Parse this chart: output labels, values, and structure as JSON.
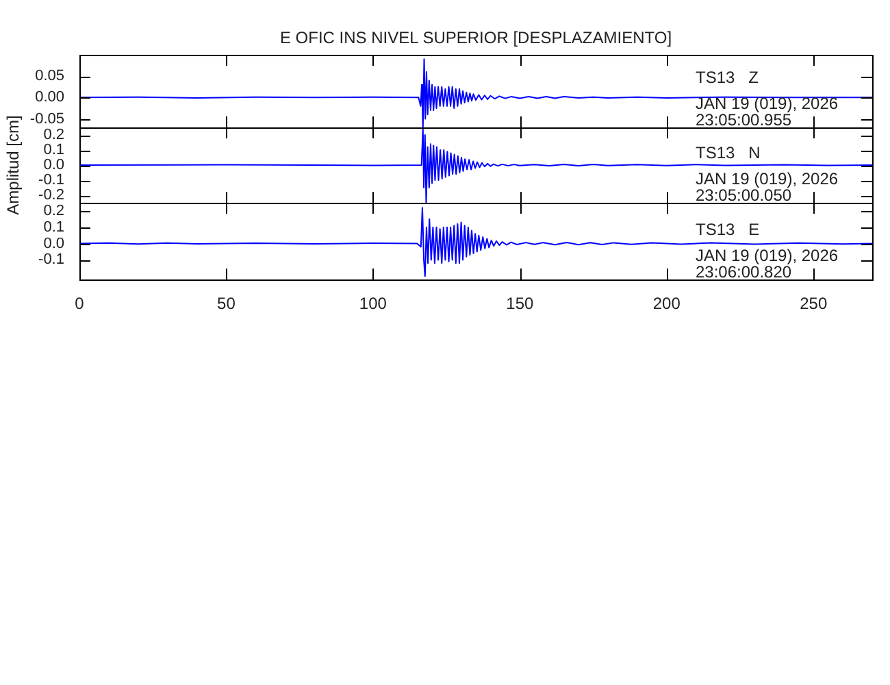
{
  "chart_data": [
    {
      "type": "line",
      "title": "E OFIC INS NIVEL SUPERIOR [DESPLAZAMIENTO]",
      "color": "#0000ff",
      "marker": "none",
      "tick_labels": "y",
      "xlim": [
        0,
        270
      ],
      "xticks": [
        0,
        50,
        100,
        150,
        200,
        250
      ],
      "ylim": [
        -0.07,
        0.1
      ],
      "yticks": [
        {
          "value": -0.05,
          "label": "-0.05"
        },
        {
          "value": 0,
          "label": "0.00"
        },
        {
          "value": 0.05,
          "label": "0.05"
        }
      ],
      "annotations": [
        "TS13   Z",
        "JAN 19 (019), 2026",
        "23:05:00.955"
      ],
      "x": [
        0,
        20,
        40,
        60,
        80,
        100,
        115.5,
        116.2,
        116.6,
        117.0,
        117.4,
        117.8,
        118.2,
        118.6,
        119.1,
        119.6,
        120.1,
        120.6,
        121.1,
        121.6,
        122.2,
        122.8,
        123.4,
        124.0,
        124.6,
        125.2,
        125.8,
        126.4,
        127.0,
        127.6,
        128.2,
        128.8,
        129.4,
        130.0,
        130.6,
        131.2,
        131.8,
        132.4,
        133.0,
        133.6,
        134.2,
        135,
        136,
        137,
        138,
        139,
        140,
        141.5,
        143,
        145,
        147,
        150,
        153,
        156,
        159,
        162,
        165,
        170,
        175,
        180,
        190,
        200,
        220,
        240,
        270
      ],
      "values": [
        0,
        0.001,
        -0.001,
        0.001,
        0,
        0.001,
        0,
        -0.02,
        0.03,
        -0.07,
        0.09,
        -0.05,
        0.06,
        -0.04,
        0.04,
        -0.03,
        0.03,
        -0.03,
        0.025,
        -0.025,
        0.025,
        -0.02,
        0.025,
        -0.02,
        0.02,
        -0.02,
        0.025,
        -0.02,
        0.025,
        -0.025,
        0.02,
        -0.02,
        0.02,
        -0.015,
        0.015,
        -0.012,
        0.012,
        -0.01,
        0.01,
        -0.008,
        0.008,
        -0.006,
        0.006,
        -0.005,
        0.005,
        -0.004,
        0.004,
        -0.003,
        0.003,
        -0.002,
        0.002,
        -0.002,
        0.002,
        -0.002,
        0.002,
        -0.002,
        0.002,
        -0.001,
        0.001,
        -0.001,
        0.001,
        -0.001,
        0.001,
        0,
        0
      ]
    },
    {
      "type": "line",
      "ylabel": "Amplitud [cm]",
      "color": "#0000ff",
      "marker": "none",
      "tick_labels": "y",
      "xlim": [
        0,
        270
      ],
      "xticks": [
        0,
        50,
        100,
        150,
        200,
        250
      ],
      "ylim": [
        -0.25,
        0.25
      ],
      "yticks": [
        {
          "value": -0.2,
          "label": "-0.2"
        },
        {
          "value": -0.1,
          "label": "-0.1"
        },
        {
          "value": 0,
          "label": "0.0"
        },
        {
          "value": 0.1,
          "label": "0.1"
        },
        {
          "value": 0.2,
          "label": "0.2"
        }
      ],
      "annotations": [
        "TS13   N",
        "JAN 19 (019), 2026",
        "23:05:00.050"
      ],
      "x": [
        0,
        50,
        100,
        116.5,
        117.0,
        117.3,
        117.7,
        118.1,
        118.6,
        119.1,
        119.6,
        120.1,
        120.6,
        121.1,
        121.7,
        122.3,
        122.9,
        123.5,
        124.1,
        124.7,
        125.3,
        125.9,
        126.5,
        127.1,
        127.7,
        128.3,
        128.9,
        129.5,
        130.1,
        130.7,
        131.3,
        132,
        132.7,
        133.4,
        134.1,
        134.8,
        135.5,
        136.3,
        137.1,
        138,
        139,
        140,
        141,
        142.5,
        144,
        146,
        148,
        150,
        155,
        160,
        165,
        170,
        175,
        180,
        190,
        200,
        210,
        220,
        240,
        255,
        270
      ],
      "values": [
        0,
        0.002,
        -0.002,
        0,
        0.24,
        -0.15,
        0.2,
        -0.25,
        0.12,
        -0.15,
        0.14,
        -0.12,
        0.13,
        -0.1,
        0.12,
        -0.1,
        0.1,
        -0.09,
        0.1,
        -0.08,
        0.09,
        -0.07,
        0.08,
        -0.06,
        0.07,
        -0.06,
        0.06,
        -0.05,
        0.05,
        -0.04,
        0.04,
        -0.03,
        0.035,
        -0.03,
        0.025,
        -0.02,
        0.02,
        -0.015,
        0.015,
        -0.01,
        0.01,
        -0.008,
        0.006,
        -0.005,
        0.005,
        -0.004,
        0.004,
        -0.003,
        0.003,
        -0.004,
        0.004,
        -0.004,
        0.004,
        -0.003,
        0.003,
        -0.003,
        0.003,
        -0.002,
        0.002,
        -0.002,
        0
      ]
    },
    {
      "type": "line",
      "color": "#0000ff",
      "marker": "none",
      "xlim": [
        0,
        270
      ],
      "xticks": [
        0,
        50,
        100,
        150,
        200,
        250
      ],
      "ylim": [
        -0.22,
        0.25
      ],
      "yticks": [
        {
          "value": -0.1,
          "label": "-0.1"
        },
        {
          "value": 0,
          "label": "0.0"
        },
        {
          "value": 0.1,
          "label": "0.1"
        },
        {
          "value": 0.2,
          "label": "0.2"
        }
      ],
      "annotations": [
        "TS13   E",
        "JAN 19 (019), 2026",
        "23:06:00.820"
      ],
      "x": [
        0,
        10,
        20,
        30,
        40,
        60,
        80,
        100,
        115,
        116.3,
        116.8,
        117.3,
        117.7,
        118.2,
        118.7,
        119.2,
        119.8,
        120.4,
        121,
        121.6,
        122.2,
        122.8,
        123.4,
        124,
        124.6,
        125.2,
        125.8,
        126.4,
        127,
        127.6,
        128.2,
        128.8,
        129.4,
        130,
        130.6,
        131.2,
        131.8,
        132.4,
        133,
        133.6,
        134.2,
        134.8,
        135.4,
        136,
        136.7,
        137.4,
        138.1,
        138.8,
        139.5,
        140.3,
        141.1,
        142,
        143,
        144,
        145.5,
        147,
        149,
        152,
        155,
        158,
        162,
        166,
        170,
        174,
        178,
        182,
        188,
        195,
        205,
        215,
        230,
        245,
        260,
        270
      ],
      "values": [
        0,
        0.003,
        -0.003,
        0.003,
        -0.002,
        0.002,
        -0.002,
        0.002,
        0,
        -0.02,
        0.22,
        -0.1,
        -0.2,
        0.1,
        -0.12,
        0.15,
        -0.1,
        0.1,
        -0.12,
        0.1,
        -0.1,
        0.09,
        -0.12,
        0.1,
        -0.1,
        0.1,
        -0.11,
        0.1,
        -0.1,
        0.11,
        -0.12,
        0.12,
        -0.12,
        0.13,
        -0.1,
        0.11,
        -0.08,
        0.1,
        -0.07,
        0.08,
        -0.06,
        0.06,
        -0.05,
        0.05,
        -0.04,
        0.04,
        -0.03,
        0.03,
        -0.025,
        0.02,
        -0.015,
        0.015,
        -0.01,
        0.01,
        -0.008,
        0.008,
        -0.006,
        0.006,
        -0.005,
        0.006,
        -0.007,
        0.007,
        -0.007,
        0.006,
        -0.006,
        0.005,
        -0.005,
        0.004,
        -0.004,
        0.004,
        -0.004,
        0.003,
        -0.003,
        0
      ]
    }
  ]
}
